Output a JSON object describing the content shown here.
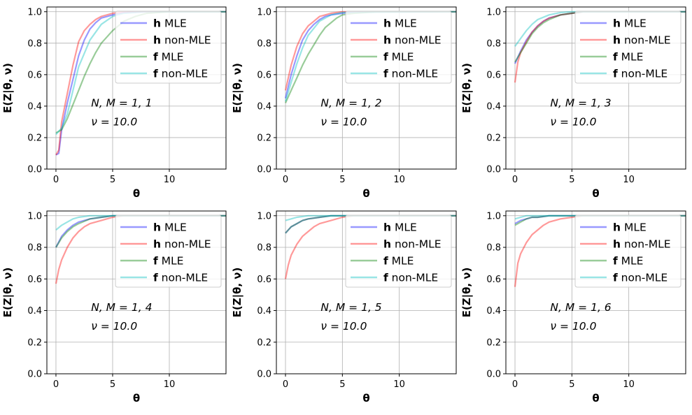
{
  "legend_labels": [
    {
      "bold": "h",
      "rest": " MLE"
    },
    {
      "bold": "h",
      "rest": " non-MLE"
    },
    {
      "bold": "f",
      "rest": " MLE"
    },
    {
      "bold": "f",
      "rest": " non-MLE"
    }
  ],
  "colors": {
    "h_mle": "#0000ff",
    "h_nonmle": "#ff0000",
    "f_mle": "#008000",
    "f_nonmle": "#00bfbf",
    "grid": "#b0b0b0"
  },
  "chart_data": [
    {
      "type": "line",
      "xlabel": "θ",
      "ylabel": "E(Z|θ, ν)",
      "xlim": [
        -0.8,
        15
      ],
      "ylim": [
        0,
        1.03
      ],
      "xticks": [
        0,
        5,
        10
      ],
      "yticks": [
        0.0,
        0.2,
        0.4,
        0.6,
        0.8,
        1.0
      ],
      "grid": true,
      "legend": "upper right",
      "annotations": [
        "N, M = 1, 1",
        "ν = 10.0"
      ],
      "series": [
        {
          "key": "h_mle",
          "x": [
            0,
            0.25,
            0.5,
            1,
            1.5,
            2,
            2.5,
            3,
            3.5,
            4,
            5,
            6,
            8,
            15
          ],
          "y": [
            0.09,
            0.1,
            0.25,
            0.42,
            0.57,
            0.72,
            0.82,
            0.89,
            0.93,
            0.96,
            0.98,
            0.995,
            1.0,
            1.0
          ]
        },
        {
          "key": "h_nonmle",
          "x": [
            0,
            0.25,
            0.5,
            1,
            1.5,
            2,
            2.5,
            3,
            3.5,
            4,
            5,
            6,
            8,
            15
          ],
          "y": [
            0.09,
            0.12,
            0.3,
            0.48,
            0.66,
            0.81,
            0.88,
            0.92,
            0.95,
            0.97,
            0.99,
            1.0,
            1.0,
            1.0
          ]
        },
        {
          "key": "f_mle",
          "x": [
            0,
            0.5,
            1,
            1.5,
            2,
            2.5,
            3,
            3.5,
            4,
            5,
            6,
            7,
            8,
            10,
            15
          ],
          "y": [
            0.23,
            0.25,
            0.32,
            0.41,
            0.5,
            0.59,
            0.67,
            0.74,
            0.8,
            0.88,
            0.94,
            0.97,
            0.99,
            1.0,
            1.0
          ]
        },
        {
          "key": "f_nonmle",
          "x": [
            0,
            0.5,
            1,
            1.5,
            2,
            3,
            4,
            5,
            6,
            8,
            15
          ],
          "y": [
            0.22,
            0.26,
            0.35,
            0.5,
            0.65,
            0.82,
            0.92,
            0.97,
            0.99,
            1.0,
            1.0
          ]
        }
      ]
    },
    {
      "type": "line",
      "xlabel": "θ",
      "ylabel": "E(Z|θ, ν)",
      "xlim": [
        -0.8,
        15
      ],
      "ylim": [
        0,
        1.03
      ],
      "xticks": [
        0,
        5,
        10
      ],
      "yticks": [
        0.0,
        0.2,
        0.4,
        0.6,
        0.8,
        1.0
      ],
      "grid": true,
      "legend": "upper right",
      "annotations": [
        "N, M = 1, 2",
        "ν = 10.0"
      ],
      "series": [
        {
          "key": "h_mle",
          "x": [
            0,
            0.5,
            1,
            1.5,
            2,
            2.5,
            3,
            3.5,
            4,
            5,
            6,
            15
          ],
          "y": [
            0.45,
            0.6,
            0.72,
            0.82,
            0.88,
            0.92,
            0.95,
            0.97,
            0.98,
            0.99,
            1.0,
            1.0
          ]
        },
        {
          "key": "h_nonmle",
          "x": [
            0,
            0.5,
            1,
            1.5,
            2,
            2.5,
            3,
            3.5,
            4,
            5,
            15
          ],
          "y": [
            0.5,
            0.66,
            0.78,
            0.86,
            0.91,
            0.94,
            0.97,
            0.98,
            0.99,
            1.0,
            1.0
          ]
        },
        {
          "key": "f_mle",
          "x": [
            0,
            0.5,
            1,
            1.5,
            2,
            2.5,
            3,
            3.5,
            4,
            4.5,
            5,
            6,
            8,
            15
          ],
          "y": [
            0.42,
            0.5,
            0.58,
            0.66,
            0.73,
            0.79,
            0.85,
            0.9,
            0.93,
            0.96,
            0.98,
            0.99,
            1.0,
            1.0
          ]
        },
        {
          "key": "f_nonmle",
          "x": [
            0,
            0.5,
            1,
            1.5,
            2,
            3,
            4,
            5,
            15
          ],
          "y": [
            0.43,
            0.55,
            0.67,
            0.77,
            0.85,
            0.94,
            0.98,
            0.995,
            1.0
          ]
        }
      ]
    },
    {
      "type": "line",
      "xlabel": "θ",
      "ylabel": "E(Z|θ, ν)",
      "xlim": [
        -0.8,
        15
      ],
      "ylim": [
        0,
        1.03
      ],
      "xticks": [
        0,
        5,
        10
      ],
      "yticks": [
        0.0,
        0.2,
        0.4,
        0.6,
        0.8,
        1.0
      ],
      "grid": true,
      "legend": "upper right",
      "annotations": [
        "N, M = 1, 3",
        "ν = 10.0"
      ],
      "series": [
        {
          "key": "h_mle",
          "x": [
            0,
            0.5,
            1,
            1.5,
            2,
            2.5,
            3,
            4,
            5,
            6,
            15
          ],
          "y": [
            0.67,
            0.75,
            0.82,
            0.87,
            0.91,
            0.94,
            0.96,
            0.98,
            0.99,
            1.0,
            1.0
          ]
        },
        {
          "key": "h_nonmle",
          "x": [
            0,
            0.25,
            0.5,
            1,
            1.5,
            2,
            2.5,
            3,
            4,
            5,
            6,
            15
          ],
          "y": [
            0.55,
            0.68,
            0.74,
            0.81,
            0.87,
            0.91,
            0.94,
            0.96,
            0.98,
            0.99,
            1.0,
            1.0
          ]
        },
        {
          "key": "f_mle",
          "x": [
            0,
            0.5,
            1,
            1.5,
            2,
            2.5,
            3,
            4,
            5,
            6,
            15
          ],
          "y": [
            0.68,
            0.74,
            0.8,
            0.86,
            0.9,
            0.93,
            0.95,
            0.98,
            0.99,
            1.0,
            1.0
          ]
        },
        {
          "key": "f_nonmle",
          "x": [
            0,
            0.5,
            1,
            1.5,
            2,
            3,
            4,
            5,
            15
          ],
          "y": [
            0.78,
            0.83,
            0.88,
            0.92,
            0.95,
            0.98,
            0.995,
            1.0,
            1.0
          ]
        }
      ]
    },
    {
      "type": "line",
      "xlabel": "θ",
      "ylabel": "E(Z|θ, ν)",
      "xlim": [
        -0.8,
        15
      ],
      "ylim": [
        0,
        1.03
      ],
      "xticks": [
        0,
        5,
        10
      ],
      "yticks": [
        0.0,
        0.2,
        0.4,
        0.6,
        0.8,
        1.0
      ],
      "grid": true,
      "legend": "upper right",
      "annotations": [
        "N, M = 1, 4",
        "ν = 10.0"
      ],
      "series": [
        {
          "key": "h_mle",
          "x": [
            0,
            0.5,
            1,
            1.5,
            2,
            3,
            4,
            5,
            6,
            15
          ],
          "y": [
            0.8,
            0.87,
            0.91,
            0.94,
            0.96,
            0.98,
            0.99,
            1.0,
            1.0,
            1.0
          ]
        },
        {
          "key": "h_nonmle",
          "x": [
            0,
            0.25,
            0.5,
            1,
            1.5,
            2,
            2.5,
            3,
            4,
            5,
            6,
            7,
            15
          ],
          "y": [
            0.57,
            0.66,
            0.72,
            0.8,
            0.86,
            0.9,
            0.93,
            0.95,
            0.97,
            0.99,
            1.0,
            1.0,
            1.0
          ]
        },
        {
          "key": "f_mle",
          "x": [
            0,
            0.5,
            1,
            1.5,
            2,
            3,
            4,
            5,
            6,
            15
          ],
          "y": [
            0.8,
            0.86,
            0.9,
            0.93,
            0.95,
            0.98,
            0.99,
            1.0,
            1.0,
            1.0
          ]
        },
        {
          "key": "f_nonmle",
          "x": [
            0,
            0.5,
            1,
            1.5,
            2,
            3,
            4,
            15
          ],
          "y": [
            0.91,
            0.94,
            0.96,
            0.98,
            0.99,
            1.0,
            1.0,
            1.0
          ]
        }
      ]
    },
    {
      "type": "line",
      "xlabel": "θ",
      "ylabel": "E(Z|θ, ν)",
      "xlim": [
        -0.8,
        15
      ],
      "ylim": [
        0,
        1.03
      ],
      "xticks": [
        0,
        5,
        10
      ],
      "yticks": [
        0.0,
        0.2,
        0.4,
        0.6,
        0.8,
        1.0
      ],
      "grid": true,
      "legend": "upper right",
      "annotations": [
        "N, M = 1, 5",
        "ν = 10.0"
      ],
      "series": [
        {
          "key": "h_mle",
          "x": [
            0,
            0.5,
            1,
            1.5,
            2,
            3,
            4,
            5,
            15
          ],
          "y": [
            0.89,
            0.93,
            0.95,
            0.97,
            0.98,
            0.99,
            1.0,
            1.0,
            1.0
          ]
        },
        {
          "key": "h_nonmle",
          "x": [
            0,
            0.25,
            0.5,
            1,
            1.5,
            2,
            2.5,
            3,
            4,
            5,
            6,
            7,
            15
          ],
          "y": [
            0.6,
            0.69,
            0.75,
            0.82,
            0.87,
            0.9,
            0.93,
            0.95,
            0.97,
            0.99,
            1.0,
            1.0,
            1.0
          ]
        },
        {
          "key": "f_mle",
          "x": [
            0,
            0.5,
            1,
            1.5,
            2,
            3,
            4,
            5,
            15
          ],
          "y": [
            0.89,
            0.93,
            0.95,
            0.97,
            0.98,
            0.99,
            1.0,
            1.0,
            1.0
          ]
        },
        {
          "key": "f_nonmle",
          "x": [
            0,
            0.5,
            1,
            2,
            3,
            15
          ],
          "y": [
            0.97,
            0.98,
            0.99,
            1.0,
            1.0,
            1.0
          ]
        }
      ]
    },
    {
      "type": "line",
      "xlabel": "θ",
      "ylabel": "E(Z|θ, ν)",
      "xlim": [
        -0.8,
        15
      ],
      "ylim": [
        0,
        1.03
      ],
      "xticks": [
        0,
        5,
        10
      ],
      "yticks": [
        0.0,
        0.2,
        0.4,
        0.6,
        0.8,
        1.0
      ],
      "grid": true,
      "legend": "upper right",
      "annotations": [
        "N, M = 1, 6",
        "ν = 10.0"
      ],
      "series": [
        {
          "key": "h_mle",
          "x": [
            0,
            0.5,
            1,
            1.5,
            2,
            3,
            4,
            15
          ],
          "y": [
            0.95,
            0.97,
            0.98,
            0.99,
            0.99,
            1.0,
            1.0,
            1.0
          ]
        },
        {
          "key": "h_nonmle",
          "x": [
            0,
            0.25,
            0.5,
            1,
            1.5,
            2,
            2.5,
            3,
            4,
            5,
            6,
            7,
            15
          ],
          "y": [
            0.55,
            0.7,
            0.76,
            0.83,
            0.88,
            0.91,
            0.94,
            0.96,
            0.98,
            0.99,
            1.0,
            1.0,
            1.0
          ]
        },
        {
          "key": "f_mle",
          "x": [
            0,
            0.5,
            1,
            1.5,
            2,
            3,
            4,
            15
          ],
          "y": [
            0.94,
            0.96,
            0.98,
            0.99,
            0.99,
            1.0,
            1.0,
            1.0
          ]
        },
        {
          "key": "f_nonmle",
          "x": [
            0,
            0.5,
            1,
            2,
            15
          ],
          "y": [
            0.98,
            0.99,
            1.0,
            1.0,
            1.0
          ]
        }
      ]
    }
  ]
}
